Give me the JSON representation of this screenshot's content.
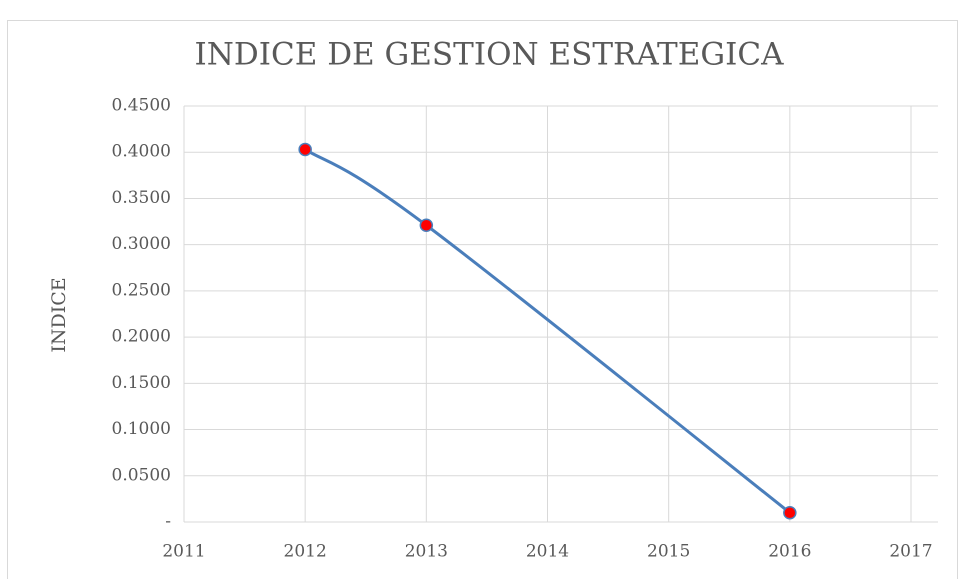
{
  "chart_data": {
    "type": "scatter-line",
    "title": "INDICE DE GESTION ESTRATEGICA",
    "y_label": "INDICE",
    "x": [
      2012,
      2013,
      2016
    ],
    "series": [
      {
        "color": "#4a7ebb",
        "marker_color": "#ff0000",
        "values": [
          0.403,
          0.321,
          0.01
        ]
      }
    ],
    "xlim": [
      2011,
      2017
    ],
    "xticks": [
      2011,
      2012,
      2013,
      2014,
      2015,
      2016,
      2017
    ],
    "ylim": [
      0,
      0.45
    ],
    "yticks": [
      {
        "value": 0,
        "label": "-"
      },
      {
        "value": 0.05,
        "label": "0.0500"
      },
      {
        "value": 0.1,
        "label": "0.1000"
      },
      {
        "value": 0.15,
        "label": "0.1500"
      },
      {
        "value": 0.2,
        "label": "0.2000"
      },
      {
        "value": 0.25,
        "label": "0.2500"
      },
      {
        "value": 0.3,
        "label": "0.3000"
      },
      {
        "value": 0.35,
        "label": "0.3500"
      },
      {
        "value": 0.4,
        "label": "0.4000"
      },
      {
        "value": 0.45,
        "label": "0.4500"
      }
    ],
    "grid": true
  }
}
